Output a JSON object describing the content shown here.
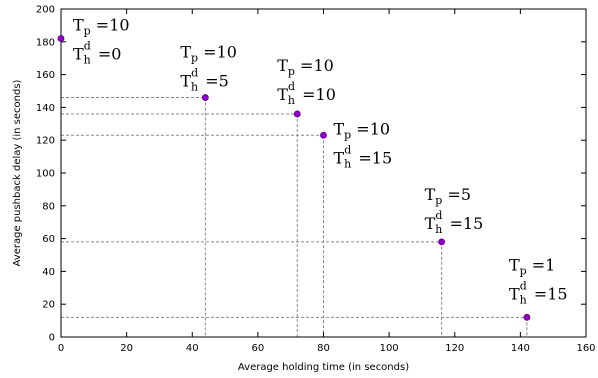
{
  "chart_data": {
    "type": "scatter",
    "xlabel": "Average holding time (in seconds)",
    "ylabel": "Average pushback delay (in seconds)",
    "xlim": [
      0,
      160
    ],
    "ylim": [
      0,
      200
    ],
    "xticks": [
      0,
      20,
      40,
      60,
      80,
      100,
      120,
      140,
      160
    ],
    "yticks": [
      0,
      20,
      40,
      60,
      80,
      100,
      120,
      140,
      160,
      180,
      200
    ],
    "grid": false,
    "legend": "none",
    "drop_lines": true,
    "marker_color": "#9400d3",
    "guide_line_color": "#888888",
    "points": [
      {
        "x": 0,
        "y": 182,
        "tp": "10",
        "thd": "0"
      },
      {
        "x": 44,
        "y": 146,
        "tp": "10",
        "thd": "5"
      },
      {
        "x": 72,
        "y": 136,
        "tp": "10",
        "thd": "10"
      },
      {
        "x": 80,
        "y": 123,
        "tp": "10",
        "thd": "15"
      },
      {
        "x": 116,
        "y": 58,
        "tp": "5",
        "thd": "15"
      },
      {
        "x": 142,
        "y": 12,
        "tp": "1",
        "thd": "15"
      }
    ]
  }
}
